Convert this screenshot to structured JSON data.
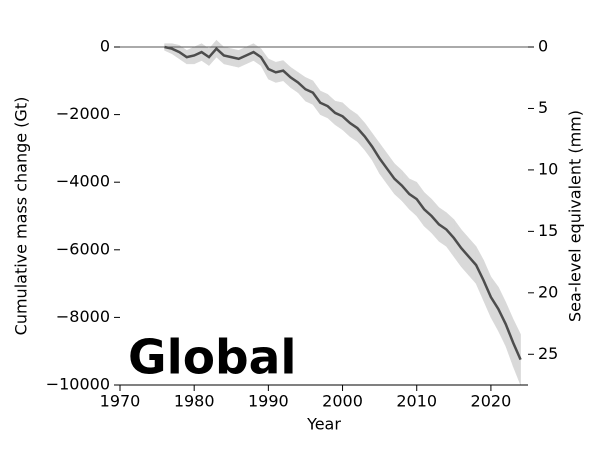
{
  "chart_data": {
    "type": "line",
    "annotation": "Global",
    "x_label": "Year",
    "y_label": "Cumulative mass change (Gt)",
    "y2_label": "Sea-level equivalent (mm)",
    "x": [
      1976,
      1977,
      1978,
      1979,
      1980,
      1981,
      1982,
      1983,
      1984,
      1985,
      1986,
      1987,
      1988,
      1989,
      1990,
      1991,
      1992,
      1993,
      1994,
      1995,
      1996,
      1997,
      1998,
      1999,
      2000,
      2001,
      2002,
      2003,
      2004,
      2005,
      2006,
      2007,
      2008,
      2009,
      2010,
      2011,
      2012,
      2013,
      2014,
      2015,
      2016,
      2017,
      2018,
      2019,
      2020,
      2021,
      2022,
      2023,
      2024
    ],
    "series": [
      {
        "color": "#4d4d4d",
        "band_color": "#d9d9d9",
        "values": [
          0,
          -50,
          -150,
          -300,
          -250,
          -150,
          -300,
          -50,
          -250,
          -300,
          -350,
          -250,
          -150,
          -300,
          -650,
          -750,
          -700,
          -900,
          -1050,
          -1250,
          -1350,
          -1650,
          -1750,
          -1950,
          -2050,
          -2250,
          -2400,
          -2650,
          -2950,
          -3300,
          -3600,
          -3900,
          -4100,
          -4350,
          -4500,
          -4800,
          -5000,
          -5250,
          -5400,
          -5650,
          -5950,
          -6200,
          -6450,
          -6900,
          -7400,
          -7750,
          -8200,
          -8750,
          -9250
        ],
        "error": [
          100,
          150,
          200,
          200,
          250,
          250,
          250,
          250,
          250,
          250,
          250,
          250,
          250,
          250,
          300,
          300,
          300,
          300,
          300,
          350,
          350,
          350,
          350,
          350,
          400,
          400,
          400,
          400,
          400,
          450,
          450,
          450,
          450,
          450,
          500,
          500,
          500,
          500,
          500,
          550,
          550,
          550,
          550,
          600,
          600,
          650,
          650,
          700,
          750
        ]
      }
    ],
    "xlim": [
      1970,
      2025
    ],
    "xticks": [
      1970,
      1980,
      1990,
      2000,
      2010,
      2020
    ],
    "ylim": [
      -10000,
      0
    ],
    "yticks": [
      {
        "value": -10000,
        "label": "−10000"
      },
      {
        "value": -8000,
        "label": "−8000"
      },
      {
        "value": -6000,
        "label": "−6000"
      },
      {
        "value": -4000,
        "label": "−4000"
      },
      {
        "value": -2000,
        "label": "−2000"
      },
      0
    ],
    "y2lim": [
      27.5,
      0
    ],
    "y2ticks": [
      0,
      5,
      10,
      15,
      20,
      25
    ]
  }
}
